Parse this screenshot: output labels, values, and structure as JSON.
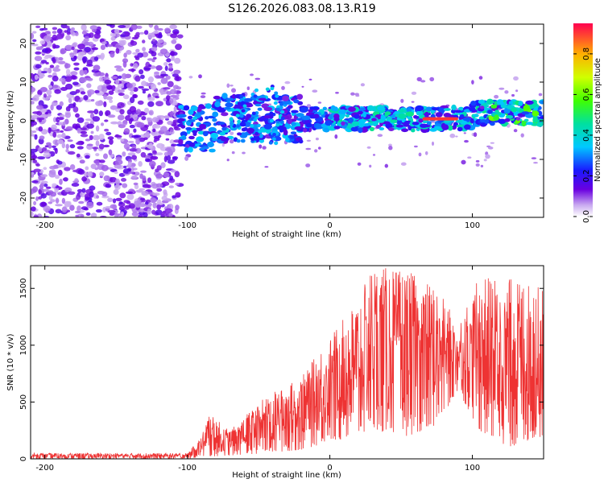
{
  "title": "S126.2026.083.08.13.R19",
  "chart_data": [
    {
      "type": "heatmap",
      "name": "spectrogram",
      "xlabel": "Height of straight line (km)",
      "ylabel": "Frequency (Hz)",
      "xlim": [
        -210,
        150
      ],
      "ylim": [
        -25,
        25
      ],
      "xticks": [
        -200,
        -100,
        0,
        100
      ],
      "yticks": [
        -20,
        -10,
        0,
        10,
        20
      ],
      "colorbar": {
        "label": "Normalized spectral amplitude",
        "range": [
          0,
          0.95
        ],
        "ticks": [
          0.0,
          0.2,
          0.4,
          0.6,
          0.8
        ]
      },
      "regions": [
        {
          "x_range": [
            -210,
            -105
          ],
          "freq_spread": 25,
          "amplitude": 0.03,
          "description": "broadband noise"
        },
        {
          "x_range": [
            -105,
            150
          ],
          "centre_freq": 0,
          "amplitude_range": [
            0.05,
            0.95
          ],
          "description": "carrier band"
        },
        {
          "x_range": [
            65,
            90
          ],
          "centre_freq": 0.5,
          "amplitude": 0.95,
          "description": "peak"
        }
      ]
    },
    {
      "type": "line",
      "name": "snr",
      "xlabel": "Height of straight line (km)",
      "ylabel": "SNR (10 * v/v)",
      "xlim": [
        -210,
        150
      ],
      "ylim": [
        0,
        1700
      ],
      "xticks": [
        -200,
        -100,
        0,
        100
      ],
      "yticks": [
        0,
        500,
        1000,
        1500
      ],
      "color": "#ee3333",
      "envelope": [
        {
          "x": -210,
          "low": 0,
          "high": 50
        },
        {
          "x": -100,
          "low": 0,
          "high": 50
        },
        {
          "x": -90,
          "low": 20,
          "high": 200
        },
        {
          "x": -85,
          "low": 20,
          "high": 400
        },
        {
          "x": -70,
          "low": 30,
          "high": 250
        },
        {
          "x": -45,
          "low": 50,
          "high": 550
        },
        {
          "x": -20,
          "low": 80,
          "high": 720
        },
        {
          "x": 0,
          "low": 150,
          "high": 1080
        },
        {
          "x": 20,
          "low": 200,
          "high": 1400
        },
        {
          "x": 30,
          "low": 250,
          "high": 1700
        },
        {
          "x": 55,
          "low": 200,
          "high": 1650
        },
        {
          "x": 75,
          "low": 300,
          "high": 1500
        },
        {
          "x": 90,
          "low": 600,
          "high": 1200
        },
        {
          "x": 105,
          "low": 250,
          "high": 1600
        },
        {
          "x": 125,
          "low": 100,
          "high": 1600
        },
        {
          "x": 150,
          "low": 200,
          "high": 1500
        }
      ]
    }
  ]
}
